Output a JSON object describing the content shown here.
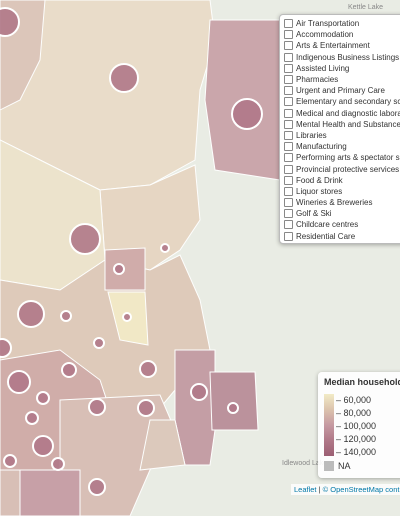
{
  "layers": {
    "items": [
      "Air Transportation",
      "Accommodation",
      "Arts & Entertainment",
      "Indigenous Business Listings",
      "Assisted Living",
      "Pharmacies",
      "Urgent and Primary Care",
      "Elementary and secondary schoo",
      "Medical and diagnostic laborator",
      "Mental Health and Substance Use",
      "Libraries",
      "Manufacturing",
      "Performing arts & spectator sport",
      "Provincial protective services",
      "Food & Drink",
      "Liquor stores",
      "Wineries & Breweries",
      "Golf & Ski",
      "Childcare centres",
      "Residential Care"
    ]
  },
  "legend": {
    "title": "Median household",
    "ticks": [
      {
        "value": 60000,
        "label": "60,000"
      },
      {
        "value": 80000,
        "label": "80,000"
      },
      {
        "value": 100000,
        "label": "100,000"
      },
      {
        "value": 120000,
        "label": "120,000"
      },
      {
        "value": 140000,
        "label": "140,000"
      }
    ],
    "na_label": "NA"
  },
  "places": {
    "kettle": "Kettle Lake",
    "idlewood": "Idlewood Lake"
  },
  "attribution": {
    "leaflet": "Leaflet",
    "osm": "© OpenStreetMap contribu"
  }
}
